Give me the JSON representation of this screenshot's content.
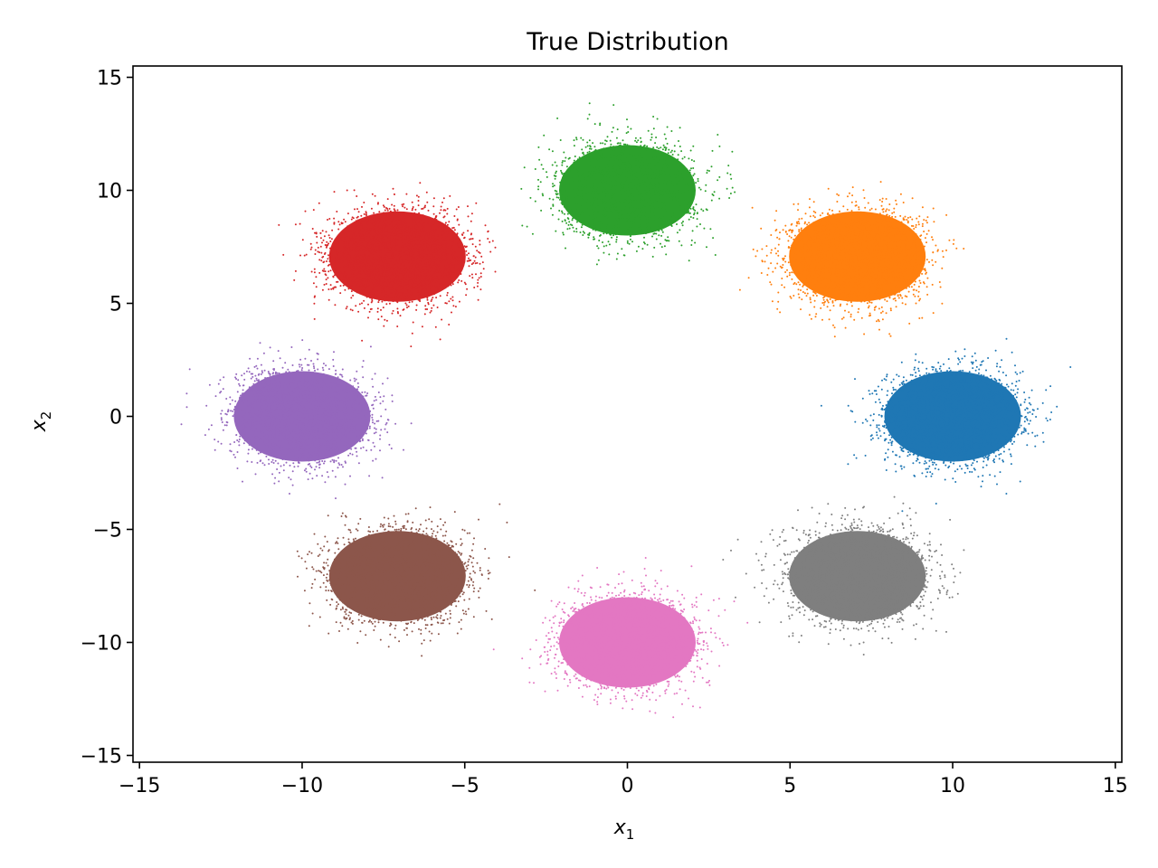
{
  "chart_data": {
    "type": "scatter",
    "title": "True Distribution",
    "xlabel": "x",
    "xlabel_sub": "1",
    "ylabel": "x",
    "ylabel_sub": "2",
    "xlim": [
      -15.2,
      15.2
    ],
    "ylim": [
      -15.3,
      15.5
    ],
    "xticks": [
      -15,
      -10,
      -5,
      0,
      5,
      10,
      15
    ],
    "yticks": [
      -15,
      -10,
      -5,
      0,
      5,
      10,
      15
    ],
    "xtick_labels": [
      "−15",
      "−10",
      "−5",
      "0",
      "5",
      "10",
      "15"
    ],
    "ytick_labels": [
      "−15",
      "−10",
      "−5",
      "0",
      "5",
      "10",
      "15"
    ],
    "grid": false,
    "series": [
      {
        "center": [
          10,
          0
        ],
        "color": "#1f77b4"
      },
      {
        "center": [
          7.07,
          7.07
        ],
        "color": "#ff7f0e"
      },
      {
        "center": [
          0,
          10
        ],
        "color": "#2ca02c"
      },
      {
        "center": [
          -7.07,
          7.07
        ],
        "color": "#d62728"
      },
      {
        "center": [
          -10,
          0
        ],
        "color": "#9467bd"
      },
      {
        "center": [
          -7.07,
          -7.07
        ],
        "color": "#8c564b"
      },
      {
        "center": [
          0,
          -10
        ],
        "color": "#e377c2"
      },
      {
        "center": [
          7.07,
          -7.07
        ],
        "color": "#7f7f7f"
      }
    ],
    "spread": [
      1.0,
      1.0
    ]
  }
}
